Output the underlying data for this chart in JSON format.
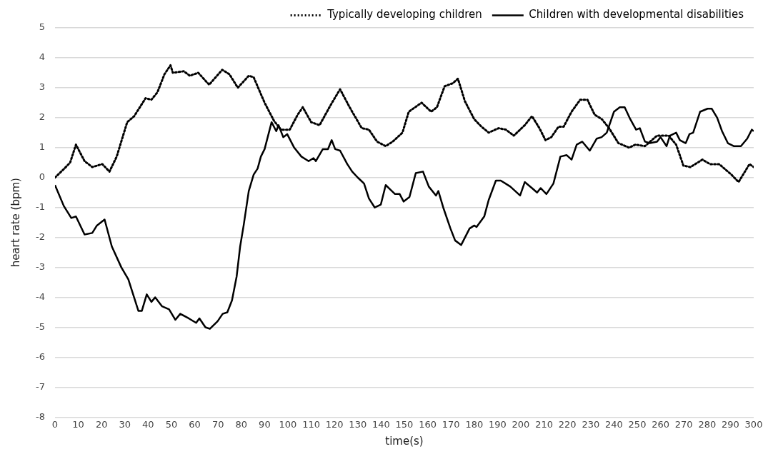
{
  "chart_data": {
    "type": "line",
    "xlabel": "time(s)",
    "ylabel": "heart rate (bpm)",
    "xlim": [
      0,
      300
    ],
    "xticks": [
      0,
      10,
      20,
      30,
      40,
      50,
      60,
      70,
      80,
      90,
      100,
      110,
      120,
      130,
      140,
      150,
      160,
      170,
      180,
      190,
      200,
      210,
      220,
      230,
      240,
      250,
      260,
      270,
      280,
      290,
      300
    ],
    "ylim": [
      -8,
      5
    ],
    "yticks": [
      -8,
      -7,
      -6,
      -5,
      -4,
      -3,
      -2,
      -1,
      0,
      1,
      2,
      3,
      4,
      5
    ],
    "grid": "y",
    "legend": "top",
    "marker": "none",
    "series": [
      {
        "name": "Typically developing children",
        "color": "#000000",
        "line_style": "dotted",
        "x": [
          0,
          4,
          6.5,
          9,
          12.7,
          16,
          20.3,
          23.4,
          26.5,
          31,
          34,
          38.9,
          41.4,
          44,
          47,
          49.6,
          50.6,
          55.3,
          57.9,
          61.5,
          66.2,
          71.8,
          74.9,
          78.5,
          83.2,
          85.3,
          90,
          94,
          97,
          100.8,
          104.2,
          106.4,
          110,
          113.6,
          118.2,
          122.4,
          126.5,
          131.7,
          134.8,
          138.3,
          142,
          145,
          149.2,
          151.9,
          157.4,
          161.5,
          164,
          167.3,
          170.8,
          173,
          176,
          180,
          183.1,
          186.2,
          190.5,
          193.6,
          197,
          201.7,
          204.8,
          208,
          210.6,
          213.1,
          216.2,
          218.4,
          221.8,
          225.5,
          228.6,
          231.7,
          234.8,
          237.9,
          241.9,
          246.5,
          249.2,
          253.3,
          258.5,
          263.5,
          266.7,
          269.8,
          272.8,
          278,
          281.2,
          285.2,
          290.4,
          293.5,
          298.2,
          300
        ],
        "values": [
          0,
          0.3,
          0.5,
          1.1,
          0.55,
          0.35,
          0.45,
          0.2,
          0.7,
          1.85,
          2.05,
          2.65,
          2.6,
          2.85,
          3.45,
          3.75,
          3.5,
          3.55,
          3.4,
          3.5,
          3.1,
          3.6,
          3.45,
          3,
          3.4,
          3.35,
          2.5,
          1.9,
          1.6,
          1.6,
          2.1,
          2.35,
          1.85,
          1.75,
          2.4,
          2.95,
          2.35,
          1.65,
          1.6,
          1.2,
          1.05,
          1.2,
          1.5,
          2.2,
          2.5,
          2.2,
          2.35,
          3.05,
          3.15,
          3.3,
          2.55,
          1.95,
          1.7,
          1.5,
          1.65,
          1.6,
          1.4,
          1.75,
          2.05,
          1.65,
          1.25,
          1.35,
          1.7,
          1.7,
          2.2,
          2.6,
          2.6,
          2.1,
          1.95,
          1.65,
          1.15,
          1,
          1.1,
          1.05,
          1.4,
          1.4,
          1.1,
          0.4,
          0.35,
          0.6,
          0.45,
          0.45,
          0.1,
          -0.15,
          0.45,
          0.35
        ]
      },
      {
        "name": "Children with developmental disabilities",
        "color": "#000000",
        "line_style": "solid",
        "x": [
          0,
          3.8,
          7,
          9,
          12.7,
          16,
          18,
          21.3,
          24.4,
          28.5,
          31.5,
          35.8,
          37.3,
          39.4,
          41.4,
          43,
          46,
          49,
          51.7,
          53.8,
          57.4,
          60.6,
          62,
          64.6,
          66.5,
          69.8,
          72,
          74,
          76,
          78,
          79.5,
          81,
          83.2,
          85.3,
          87,
          88.4,
          90,
          93,
          95,
          96,
          98,
          99.7,
          102.7,
          105.8,
          108.9,
          111,
          112,
          115,
          117.2,
          118.8,
          120.3,
          122.4,
          125.5,
          127.6,
          130,
          132.7,
          134.8,
          137.3,
          139.9,
          142,
          144,
          146,
          148,
          149.7,
          152.2,
          154.9,
          158,
          160.5,
          163.6,
          164.6,
          166.7,
          169.8,
          171.8,
          174.4,
          178,
          180,
          181,
          184.3,
          186.2,
          189.3,
          191.4,
          195.5,
          199.7,
          201.7,
          204.8,
          207,
          208.5,
          211,
          214,
          217,
          219.7,
          221.8,
          224,
          226.4,
          229.6,
          232.6,
          234.7,
          236.9,
          240,
          242.5,
          244.6,
          247,
          249.5,
          251.1,
          253.3,
          255.4,
          258.5,
          260,
          262.6,
          264,
          266.7,
          268.3,
          270.8,
          272.4,
          274,
          277,
          280.2,
          282,
          284.3,
          286.4,
          288.9,
          291.4,
          294.5,
          297.2,
          299.2,
          300
        ],
        "values": [
          -0.25,
          -0.95,
          -1.35,
          -1.3,
          -1.9,
          -1.85,
          -1.6,
          -1.4,
          -2.3,
          -3,
          -3.4,
          -4.45,
          -4.45,
          -3.9,
          -4.15,
          -4,
          -4.3,
          -4.4,
          -4.75,
          -4.55,
          -4.7,
          -4.85,
          -4.7,
          -5,
          -5.05,
          -4.8,
          -4.55,
          -4.5,
          -4.1,
          -3.3,
          -2.3,
          -1.6,
          -0.45,
          0.1,
          0.3,
          0.7,
          0.95,
          1.85,
          1.55,
          1.75,
          1.35,
          1.45,
          1,
          0.7,
          0.55,
          0.65,
          0.55,
          0.95,
          0.95,
          1.25,
          0.95,
          0.9,
          0.45,
          0.2,
          0,
          -0.2,
          -0.7,
          -1,
          -0.9,
          -0.25,
          -0.4,
          -0.55,
          -0.55,
          -0.8,
          -0.65,
          0.15,
          0.2,
          -0.3,
          -0.6,
          -0.45,
          -1,
          -1.7,
          -2.1,
          -2.25,
          -1.7,
          -1.6,
          -1.65,
          -1.3,
          -0.75,
          -0.1,
          -0.1,
          -0.3,
          -0.6,
          -0.15,
          -0.35,
          -0.5,
          -0.35,
          -0.55,
          -0.2,
          0.7,
          0.75,
          0.6,
          1.1,
          1.2,
          0.9,
          1.3,
          1.35,
          1.5,
          2.2,
          2.35,
          2.35,
          1.95,
          1.6,
          1.65,
          1.2,
          1.15,
          1.2,
          1.35,
          1.05,
          1.4,
          1.5,
          1.25,
          1.15,
          1.45,
          1.5,
          2.2,
          2.3,
          2.3,
          2,
          1.55,
          1.15,
          1.05,
          1.05,
          1.3,
          1.6,
          1.55
        ]
      }
    ]
  }
}
